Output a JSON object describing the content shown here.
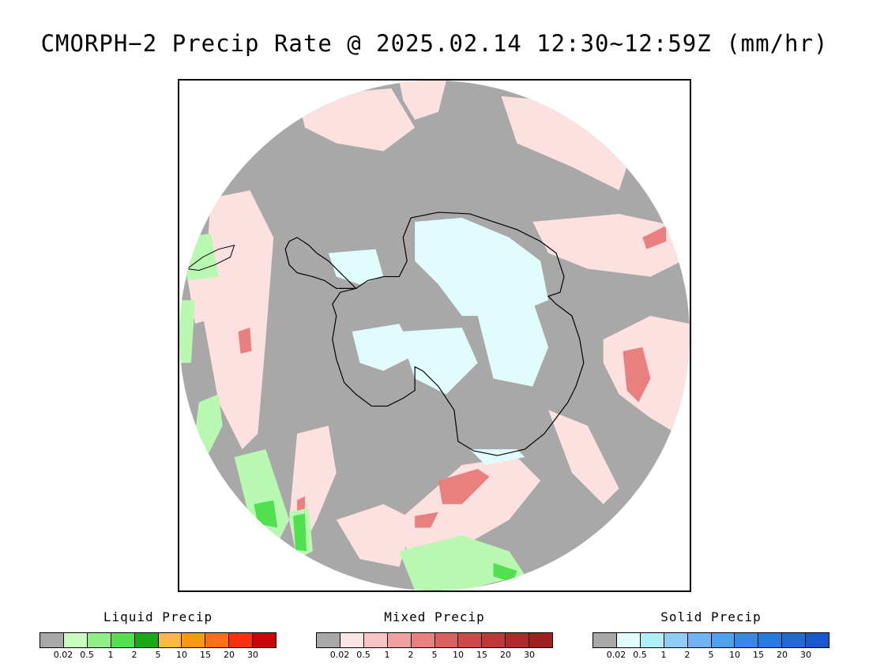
{
  "title": "CMORPH−2 Precip Rate @ 2025.02.14 12:30~12:59Z (mm/hr)",
  "colors": {
    "no_precip_gray": "#a8a8a8",
    "land_outline": "#000000"
  },
  "legends": [
    {
      "id": "liquid",
      "title": "Liquid Precip",
      "colors": [
        "#a8a8a8",
        "#c8fcc0",
        "#90ee88",
        "#50e050",
        "#1aa81a",
        "#fcb840",
        "#fc9810",
        "#fc7010",
        "#f83010",
        "#c80808"
      ],
      "ticks": [
        "0.02",
        "0.5",
        "1",
        "2",
        "5",
        "10",
        "15",
        "20",
        "30"
      ]
    },
    {
      "id": "mixed",
      "title": "Mixed Precip",
      "colors": [
        "#a8a8a8",
        "#fde4e4",
        "#f8c4c4",
        "#f0a0a0",
        "#e88080",
        "#dc6060",
        "#d04848",
        "#c03838",
        "#b02828",
        "#a02020"
      ],
      "ticks": [
        "0.02",
        "0.5",
        "1",
        "2",
        "5",
        "10",
        "15",
        "20",
        "30"
      ]
    },
    {
      "id": "solid",
      "title": "Solid Precip",
      "colors": [
        "#a8a8a8",
        "#e0fcfc",
        "#b0eef8",
        "#90ccf8",
        "#70b4f4",
        "#50a0f0",
        "#3888ec",
        "#2878e8",
        "#2068dc",
        "#1858cc"
      ],
      "ticks": [
        "0.02",
        "0.5",
        "1",
        "2",
        "5",
        "10",
        "15",
        "20",
        "30"
      ]
    }
  ]
}
